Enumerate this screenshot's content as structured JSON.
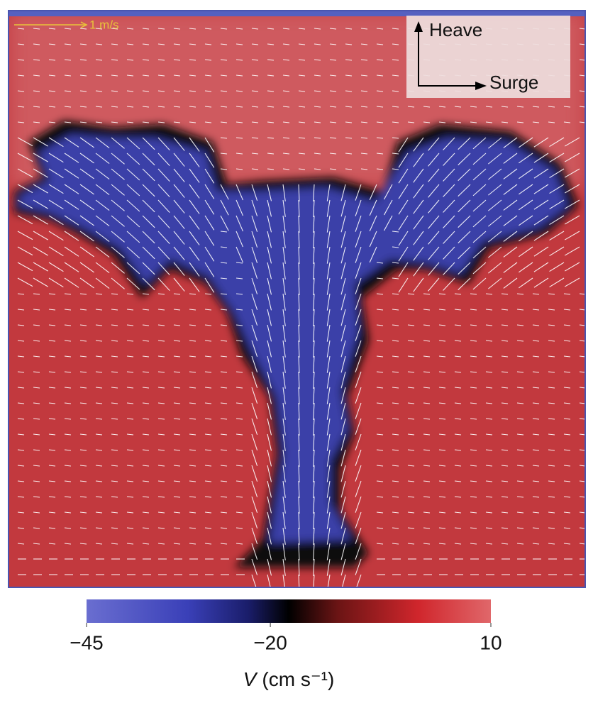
{
  "chart_data": {
    "type": "colormap",
    "scale_label": "1 m/s",
    "axis_labels": {
      "vertical": "Heave",
      "horizontal": "Surge"
    },
    "colorbar": {
      "lim": [
        -45,
        10
      ],
      "ticks": [
        {
          "value": -45,
          "label": "−45"
        },
        {
          "value": -20,
          "label": "−20"
        },
        10
      ],
      "variable": "V",
      "unit": "(cm s⁻¹)"
    }
  }
}
